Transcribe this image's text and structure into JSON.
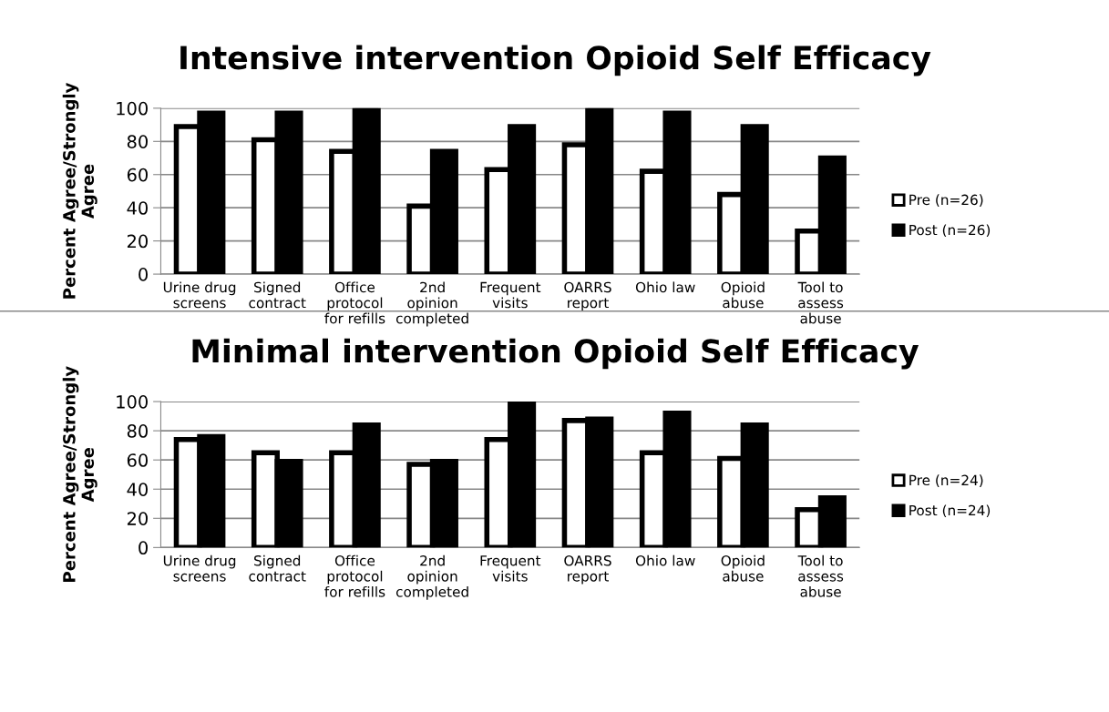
{
  "chart_data": [
    {
      "type": "bar",
      "title": "Intensive intervention Opioid Self Efficacy",
      "ylabel": "Percent Agree/Strongly\nAgree",
      "categories": [
        "Urine drug\nscreens",
        "Signed\ncontract",
        "Office\nprotocol\nfor refills",
        "2nd\nopinion\ncompleted",
        "Frequent\nvisits",
        "OARRS\nreport",
        "Ohio law",
        "Opioid\nabuse",
        "Tool to\nassess\nabuse"
      ],
      "series": [
        {
          "name": "Pre (n=26)",
          "color": "#ffffff",
          "values": [
            89,
            81,
            74,
            41,
            63,
            78,
            62,
            48,
            26
          ]
        },
        {
          "name": "Post (n=26)",
          "color": "#000000",
          "values": [
            97,
            97,
            100,
            74,
            89,
            100,
            97,
            89,
            70
          ]
        }
      ],
      "ylim": [
        0,
        100
      ],
      "yticks": [
        0,
        20,
        40,
        60,
        80,
        100
      ],
      "grid": "y",
      "legend": "right"
    },
    {
      "type": "bar",
      "title": "Minimal intervention Opioid Self Efficacy",
      "ylabel": "Percent Agree/Strongly\nAgree",
      "categories": [
        "Urine drug\nscreens",
        "Signed\ncontract",
        "Office\nprotocol\nfor refills",
        "2nd\nopinion\ncompleted",
        "Frequent\nvisits",
        "OARRS\nreport",
        "Ohio law",
        "Opioid\nabuse",
        "Tool to\nassess\nabuse"
      ],
      "series": [
        {
          "name": "Pre (n=24)",
          "color": "#ffffff",
          "values": [
            74,
            65,
            65,
            57,
            74,
            87,
            65,
            61,
            26
          ]
        },
        {
          "name": "Post (n=24)",
          "color": "#000000",
          "values": [
            76,
            59,
            84,
            59,
            100,
            88,
            92,
            84,
            34
          ]
        }
      ],
      "ylim": [
        0,
        100
      ],
      "yticks": [
        0,
        20,
        40,
        60,
        80,
        100
      ],
      "grid": "y",
      "legend": "right"
    }
  ]
}
